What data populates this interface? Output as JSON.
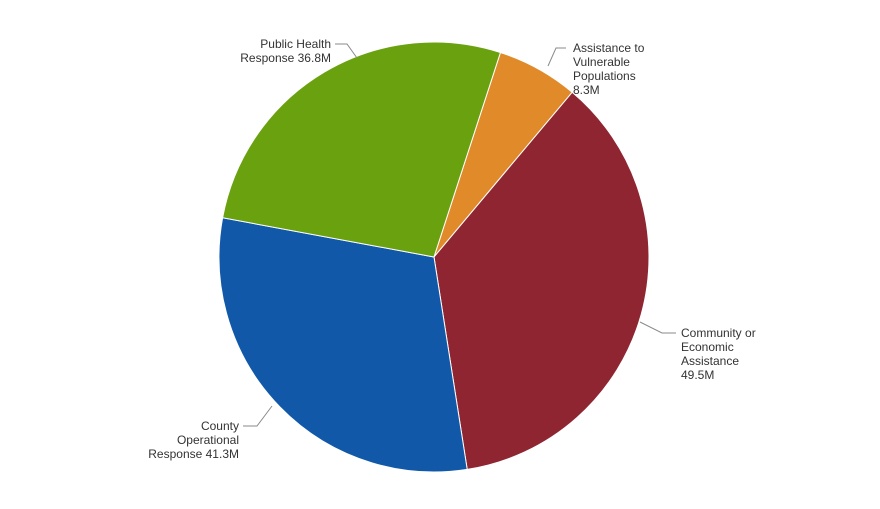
{
  "chart_data": {
    "type": "pie",
    "categories": [
      "Assistance to Vulnerable Populations",
      "Community or Economic Assistance",
      "County Operational Response",
      "Public Health Response"
    ],
    "values": [
      8.3,
      49.5,
      41.3,
      36.8
    ],
    "colors": [
      "#e08a2a",
      "#8e2531",
      "#1159a8",
      "#6aa10f"
    ],
    "labels": [
      [
        "Assistance to",
        "Vulnerable",
        "Populations",
        "8.3M"
      ],
      [
        "Community or",
        "Economic",
        "Assistance",
        "49.5M"
      ],
      [
        "County",
        "Operational",
        "Response 41.3M"
      ],
      [
        "Public Health",
        "Response 36.8M"
      ]
    ],
    "legend": "none"
  }
}
